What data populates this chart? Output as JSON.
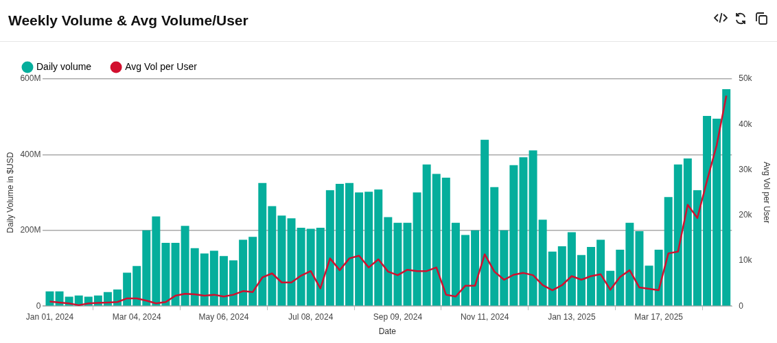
{
  "chart_data": {
    "type": "bar",
    "title": "Weekly Volume & Avg Volume/User",
    "xlabel": "Date",
    "ylabel": "Daily Volume in $USD",
    "y2label": "Avg Vol per User",
    "x": [
      "2024-01-01",
      "2024-01-08",
      "2024-01-15",
      "2024-01-22",
      "2024-01-29",
      "2024-02-05",
      "2024-02-12",
      "2024-02-19",
      "2024-02-26",
      "2024-03-04",
      "2024-03-11",
      "2024-03-18",
      "2024-03-25",
      "2024-04-01",
      "2024-04-08",
      "2024-04-15",
      "2024-04-22",
      "2024-04-29",
      "2024-05-06",
      "2024-05-13",
      "2024-05-20",
      "2024-05-27",
      "2024-06-03",
      "2024-06-10",
      "2024-06-17",
      "2024-06-24",
      "2024-07-01",
      "2024-07-08",
      "2024-07-15",
      "2024-07-22",
      "2024-07-29",
      "2024-08-05",
      "2024-08-12",
      "2024-08-19",
      "2024-08-26",
      "2024-09-02",
      "2024-09-09",
      "2024-09-16",
      "2024-09-23",
      "2024-09-30",
      "2024-10-07",
      "2024-10-14",
      "2024-10-21",
      "2024-10-28",
      "2024-11-04",
      "2024-11-11",
      "2024-11-18",
      "2024-11-25",
      "2024-12-02",
      "2024-12-09",
      "2024-12-16",
      "2024-12-23",
      "2024-12-30",
      "2025-01-06",
      "2025-01-13",
      "2025-01-20",
      "2025-01-27",
      "2025-02-03",
      "2025-02-10",
      "2025-02-17",
      "2025-02-24",
      "2025-03-03",
      "2025-03-10",
      "2025-03-17",
      "2025-03-24",
      "2025-03-31",
      "2025-04-07",
      "2025-04-14",
      "2025-04-21",
      "2025-04-28",
      "2025-05-05"
    ],
    "series": [
      {
        "name": "Daily volume",
        "color": "#05ae9c",
        "values": [
          39000000,
          39000000,
          25000000,
          28000000,
          25000000,
          28000000,
          37000000,
          44000000,
          88000000,
          106000000,
          200000000,
          237000000,
          167000000,
          167000000,
          212000000,
          153000000,
          139000000,
          146000000,
          132000000,
          121000000,
          175000000,
          183000000,
          325000000,
          264000000,
          239000000,
          232000000,
          207000000,
          204000000,
          207000000,
          306000000,
          323000000,
          325000000,
          300000000,
          302000000,
          308000000,
          235000000,
          220000000,
          220000000,
          300000000,
          374000000,
          349000000,
          339000000,
          220000000,
          188000000,
          200000000,
          439000000,
          314000000,
          200000000,
          372000000,
          393000000,
          411000000,
          228000000,
          144000000,
          158000000,
          195000000,
          135000000,
          156000000,
          175000000,
          93000000,
          149000000,
          220000000,
          198000000,
          107000000,
          149000000,
          288000000,
          374000000,
          390000000,
          306000000,
          502000000,
          495000000,
          573000000
        ]
      },
      {
        "name": "Avg Vol per User",
        "type": "line",
        "axis": "y2",
        "color": "#d20f2e",
        "values": [
          1000,
          800,
          600,
          200,
          600,
          700,
          800,
          900,
          1700,
          1700,
          1200,
          600,
          900,
          2300,
          2700,
          2600,
          2300,
          2500,
          2100,
          2500,
          3300,
          3100,
          6300,
          7200,
          5200,
          5200,
          6700,
          7700,
          3900,
          10500,
          7900,
          10500,
          11100,
          8500,
          10300,
          7600,
          6800,
          8000,
          7700,
          7700,
          8500,
          2500,
          2100,
          4500,
          4500,
          11400,
          7600,
          5800,
          6900,
          7300,
          6800,
          4600,
          3500,
          4600,
          6600,
          5800,
          6600,
          7000,
          3600,
          6400,
          7900,
          4100,
          3800,
          3500,
          11600,
          12000,
          22300,
          19400,
          27600,
          35400,
          46300
        ]
      }
    ],
    "xlim": [
      "2023-12-27",
      "2025-05-09"
    ],
    "xticks": [
      {
        "value": "2024-01-01",
        "label": "Jan 01, 2024"
      },
      {
        "value": "2024-03-04",
        "label": "Mar 04, 2024"
      },
      {
        "value": "2024-05-06",
        "label": "May 06, 2024"
      },
      {
        "value": "2024-07-08",
        "label": "Jul 08, 2024"
      },
      {
        "value": "2024-09-09",
        "label": "Sep 09, 2024"
      },
      {
        "value": "2024-11-11",
        "label": "Nov 11, 2024"
      },
      {
        "value": "2025-01-13",
        "label": "Jan 13, 2025"
      },
      {
        "value": "2025-03-17",
        "label": "Mar 17, 2025"
      }
    ],
    "ylim": [
      0,
      600000000
    ],
    "yticks": [
      0,
      {
        "value": 200000000,
        "label": "200M"
      },
      {
        "value": 400000000,
        "label": "400M"
      },
      {
        "value": 600000000,
        "label": "600M"
      }
    ],
    "y2lim": [
      0,
      50000
    ],
    "y2ticks": [
      0,
      {
        "value": 10000,
        "label": "10k"
      },
      {
        "value": 20000,
        "label": "20k"
      },
      {
        "value": 30000,
        "label": "30k"
      },
      {
        "value": 40000,
        "label": "40k"
      },
      {
        "value": 50000,
        "label": "50k"
      }
    ],
    "grid": "y",
    "legend": "top left",
    "marker": "none"
  }
}
